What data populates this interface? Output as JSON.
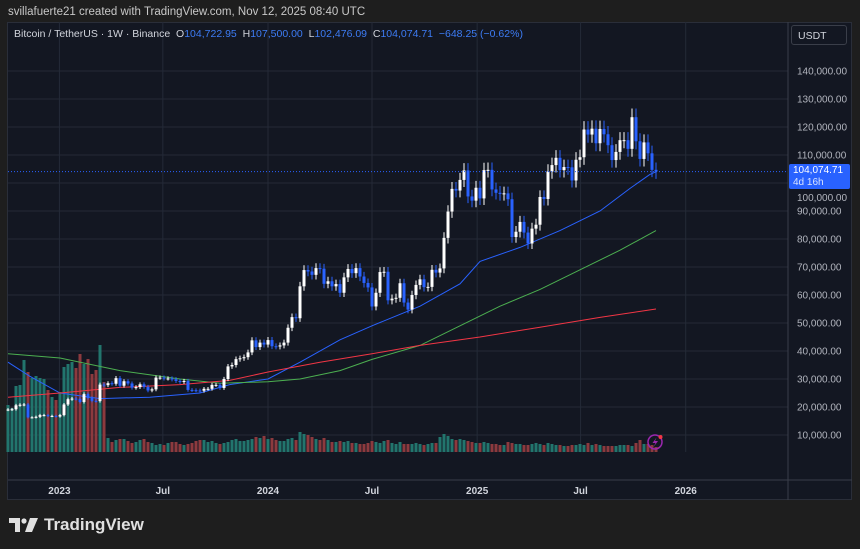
{
  "header": {
    "credit": "svillafuerte21 created with TradingView.com, Nov 12, 2025 08:40 UTC"
  },
  "legend": {
    "symbol": "Bitcoin / TetherUS · 1W · Binance",
    "open_label": "O",
    "open": "104,722.95",
    "high_label": "H",
    "high": "107,500.00",
    "low_label": "L",
    "low": "102,476.09",
    "close_label": "C",
    "close": "104,074.71",
    "change": "−648.25 (−0.62%)"
  },
  "currency_button": "USDT",
  "price_tag": {
    "price": "104,074.71",
    "countdown": "4d 16h"
  },
  "logo_text": "TradingView",
  "colors": {
    "up": "#ffffff",
    "down": "#2962ff",
    "vol_up": "#22756d",
    "vol_down": "#8c3a3e",
    "ma_blue": "#2962ff",
    "ma_green": "#4caf50",
    "ma_red": "#f23645",
    "grid": "#242a37"
  },
  "chart_data": {
    "type": "candlestick",
    "interval": "1W",
    "first_candle": "2022-10-03",
    "first_open": 19.0,
    "units": "thousand USDT",
    "ylim": [
      0,
      150
    ],
    "y_ticks": [
      "10,000.00",
      "20,000.00",
      "30,000.00",
      "40,000.00",
      "50,000.00",
      "60,000.00",
      "70,000.00",
      "80,000.00",
      "90,000.00",
      "100,000.00",
      "110,000.00",
      "120,000.00",
      "130,000.00",
      "140,000.00"
    ],
    "y_tick_values": [
      10,
      20,
      30,
      40,
      50,
      60,
      70,
      80,
      90,
      100,
      110,
      120,
      130,
      140
    ],
    "x_ticks": [
      {
        "label": "2023",
        "date": "2023-01-01"
      },
      {
        "label": "Jul",
        "date": "2023-07-01"
      },
      {
        "label": "2024",
        "date": "2024-01-01"
      },
      {
        "label": "Jul",
        "date": "2024-07-01"
      },
      {
        "label": "2025",
        "date": "2025-01-01"
      },
      {
        "label": "Jul",
        "date": "2025-07-01"
      },
      {
        "label": "2026",
        "date": "2026-01-01"
      }
    ],
    "closes": [
      19.1,
      19.2,
      20.6,
      20.8,
      20.9,
      16.3,
      16.3,
      16.5,
      17.1,
      17.1,
      16.8,
      16.8,
      16.6,
      17.1,
      20.9,
      22.8,
      23.0,
      22.9,
      21.8,
      24.6,
      23.2,
      22.2,
      22.1,
      28.0,
      27.8,
      28.5,
      28.3,
      30.3,
      27.6,
      29.2,
      28.4,
      26.9,
      27.1,
      28.1,
      27.2,
      25.9,
      26.3,
      30.5,
      30.5,
      30.2,
      30.2,
      29.9,
      29.3,
      29.0,
      29.3,
      26.1,
      26.0,
      25.9,
      25.8,
      26.5,
      26.5,
      27.9,
      27.9,
      26.8,
      30.0,
      34.5,
      35.0,
      37.1,
      37.4,
      37.8,
      39.5,
      43.8,
      41.4,
      43.0,
      42.3,
      43.9,
      41.7,
      41.6,
      42.0,
      43.0,
      48.3,
      52.1,
      51.7,
      63.1,
      68.9,
      68.4,
      67.2,
      69.6,
      69.4,
      64.0,
      64.9,
      63.1,
      63.9,
      60.8,
      66.3,
      69.3,
      67.8,
      69.6,
      66.6,
      64.3,
      62.7,
      55.9,
      60.8,
      68.2,
      68.3,
      58.1,
      58.7,
      59.0,
      64.2,
      57.3,
      54.8,
      60.0,
      63.6,
      65.6,
      62.8,
      62.9,
      69.0,
      68.0,
      69.5,
      80.4,
      89.8,
      97.9,
      97.3,
      101.1,
      104.5,
      95.2,
      93.7,
      98.3,
      94.5,
      104.6,
      104.7,
      97.7,
      96.5,
      96.1,
      96.3,
      94.2,
      80.7,
      82.6,
      86.1,
      82.3,
      78.4,
      83.7,
      85.1,
      95.0,
      94.3,
      104.1,
      106.4,
      109.0,
      104.6,
      105.7,
      105.6,
      100.9,
      108.3,
      109.2,
      119.1,
      117.3,
      119.4,
      114.2,
      119.3,
      117.4,
      113.5,
      108.2,
      111.1,
      115.3,
      115.3,
      112.2,
      123.5,
      114.9,
      108.6,
      114.5,
      110.6,
      104.7,
      104.07
    ],
    "volume_relative": [
      47,
      44,
      66,
      67,
      92,
      80,
      74,
      76,
      74,
      73,
      62,
      55,
      52,
      60,
      85,
      88,
      90,
      84,
      98,
      88,
      93,
      78,
      82,
      107,
      70,
      14,
      10,
      12,
      13,
      13,
      11,
      9,
      10,
      12,
      13,
      10,
      9,
      7,
      8,
      7,
      9,
      10,
      10,
      8,
      7,
      8,
      9,
      11,
      12,
      12,
      10,
      11,
      9,
      8,
      9,
      10,
      12,
      13,
      11,
      11,
      12,
      13,
      15,
      14,
      16,
      13,
      14,
      12,
      11,
      11,
      13,
      14,
      12,
      20,
      18,
      17,
      15,
      13,
      12,
      14,
      12,
      10,
      10,
      11,
      10,
      11,
      9,
      9,
      8,
      8,
      9,
      11,
      10,
      9,
      11,
      12,
      9,
      8,
      10,
      8,
      8,
      8,
      9,
      8,
      7,
      8,
      9,
      9,
      15,
      18,
      16,
      13,
      12,
      13,
      12,
      11,
      10,
      9,
      9,
      10,
      9,
      8,
      8,
      7,
      7,
      10,
      9,
      8,
      8,
      7,
      7,
      8,
      9,
      8,
      7,
      9,
      8,
      7,
      7,
      6,
      6,
      7,
      7,
      8,
      7,
      9,
      7,
      8,
      7,
      6,
      6,
      6,
      6,
      7,
      7,
      7,
      6,
      9,
      12,
      8,
      8,
      7,
      5
    ],
    "moving_averages": [
      {
        "color": "#2962ff",
        "points": [
          [
            "2022-10-03",
            36
          ],
          [
            "2022-11-10",
            31
          ],
          [
            "2023-01-02",
            25
          ],
          [
            "2023-03-13",
            23
          ],
          [
            "2023-06-08",
            23.5
          ],
          [
            "2023-09-04",
            25
          ],
          [
            "2023-10-26",
            28
          ],
          [
            "2024-01-01",
            30
          ],
          [
            "2024-02-26",
            36
          ],
          [
            "2024-05-06",
            44
          ],
          [
            "2024-07-01",
            49
          ],
          [
            "2024-09-23",
            56
          ],
          [
            "2024-12-02",
            64
          ],
          [
            "2025-01-06",
            72
          ],
          [
            "2025-03-17",
            77
          ],
          [
            "2025-05-26",
            83
          ],
          [
            "2025-08-04",
            90
          ],
          [
            "2025-09-25",
            98
          ],
          [
            "2025-10-30",
            103
          ],
          [
            "2025-11-10",
            104
          ]
        ]
      },
      {
        "color": "#4caf50",
        "points": [
          [
            "2022-10-03",
            39
          ],
          [
            "2023-01-02",
            37.5
          ],
          [
            "2023-04-17",
            33
          ],
          [
            "2023-07-31",
            30
          ],
          [
            "2023-10-09",
            28.5
          ],
          [
            "2024-01-01",
            29
          ],
          [
            "2024-02-26",
            30
          ],
          [
            "2024-05-06",
            33
          ],
          [
            "2024-07-01",
            37
          ],
          [
            "2024-09-23",
            42
          ],
          [
            "2024-12-02",
            49
          ],
          [
            "2025-02-10",
            56
          ],
          [
            "2025-04-21",
            62
          ],
          [
            "2025-06-30",
            69
          ],
          [
            "2025-09-08",
            76
          ],
          [
            "2025-11-10",
            83
          ]
        ]
      },
      {
        "color": "#f23645",
        "points": [
          [
            "2022-10-03",
            23.5
          ],
          [
            "2023-01-02",
            25
          ],
          [
            "2023-04-17",
            27
          ],
          [
            "2023-07-31",
            28
          ],
          [
            "2023-10-26",
            29.5
          ],
          [
            "2024-01-01",
            32.5
          ],
          [
            "2024-04-01",
            36
          ],
          [
            "2024-07-01",
            39
          ],
          [
            "2024-09-23",
            42
          ],
          [
            "2025-01-06",
            45
          ],
          [
            "2025-04-21",
            48.5
          ],
          [
            "2025-08-04",
            52
          ],
          [
            "2025-11-10",
            55
          ]
        ]
      }
    ]
  }
}
